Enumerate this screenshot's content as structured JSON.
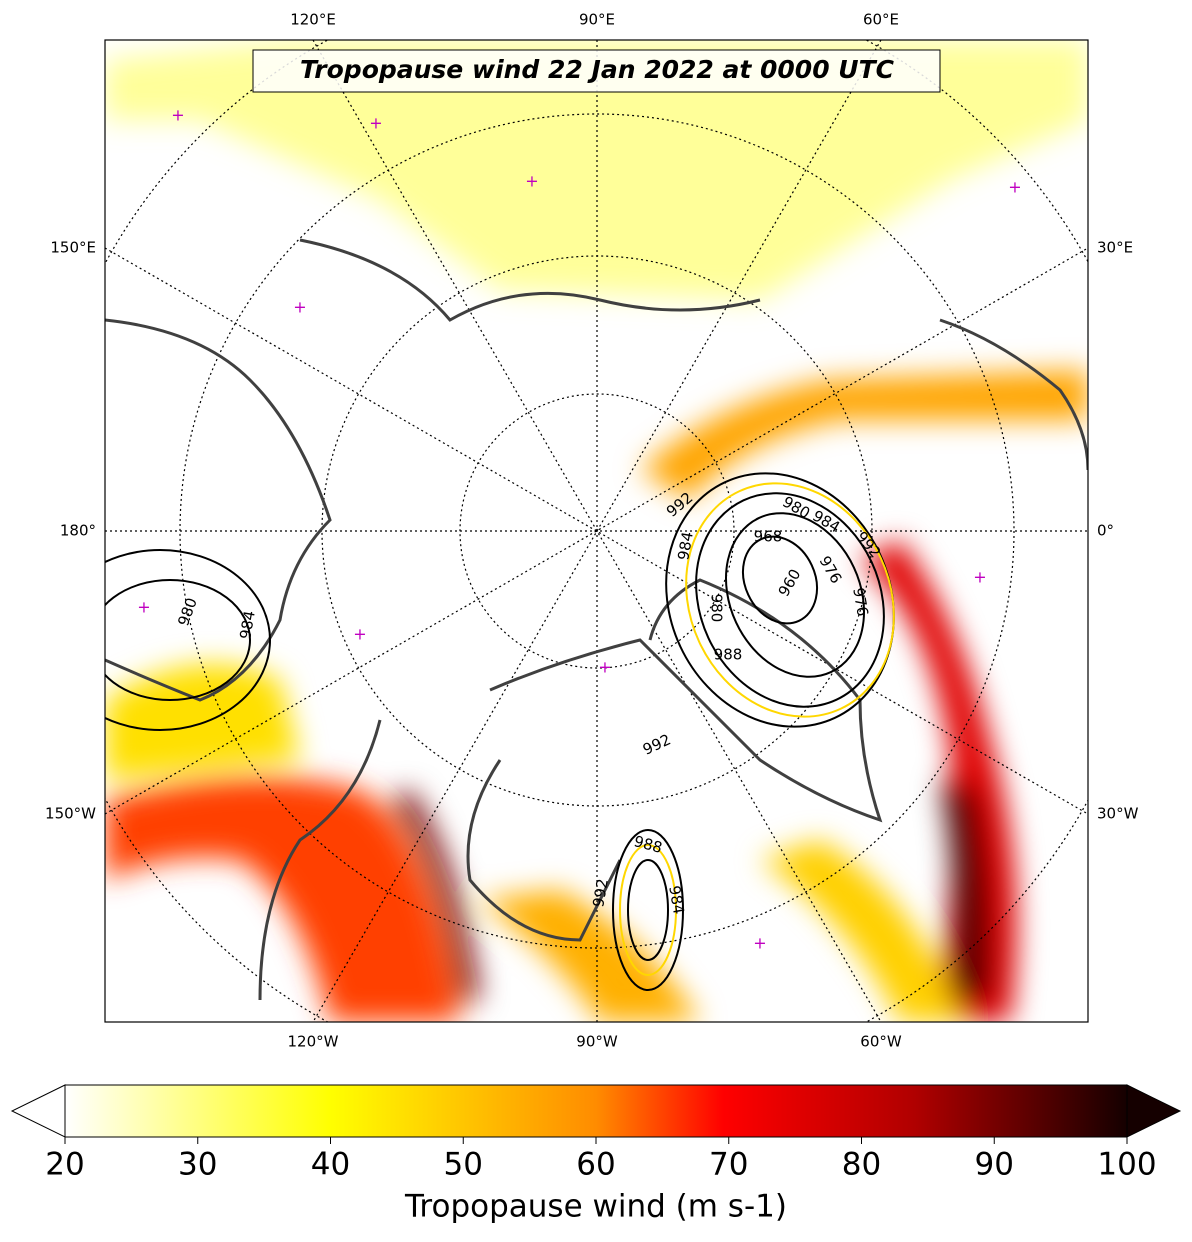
{
  "title": "Tropopause wind 22 Jan 2022 at 0000 UTC",
  "lon_labels": {
    "top": [
      "120°E",
      "90°E",
      "60°E"
    ],
    "left": [
      "150°E",
      "180°",
      "150°W"
    ],
    "right": [
      "30°E",
      "0°",
      "30°W"
    ],
    "bottom": [
      "120°W",
      "90°W",
      "60°W"
    ]
  },
  "contour_labels": [
    992,
    980,
    984,
    992,
    968,
    984,
    976,
    960,
    976,
    980,
    988,
    992,
    980,
    984,
    988,
    992,
    984
  ],
  "colorbar": {
    "label": "Tropopause wind (m s-1)",
    "lim": [
      20,
      100
    ],
    "ticks": [
      20,
      30,
      40,
      50,
      60,
      70,
      80,
      90,
      100
    ]
  }
}
